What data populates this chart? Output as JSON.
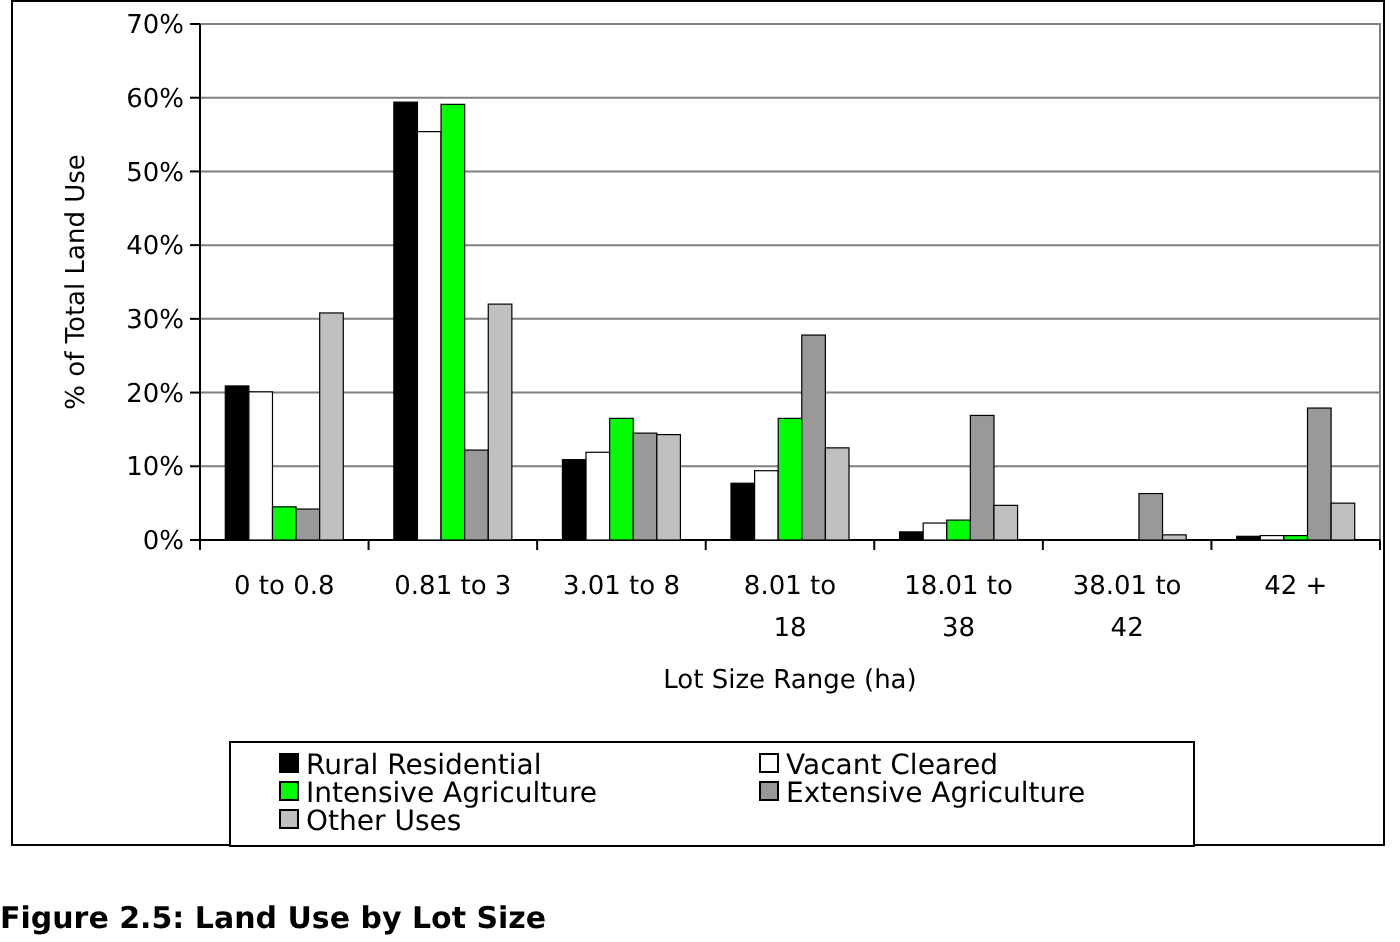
{
  "chart_data": {
    "type": "bar",
    "title": "Figure 2.5: Land Use by Lot Size",
    "xlabel": "Lot Size Range (ha)",
    "ylabel": "% of Total Land Use",
    "categories": [
      "0 to 0.8",
      "0.81 to 3",
      "3.01 to 8",
      "8.01 to 18",
      "18.01 to 38",
      "38.01 to 42",
      "42 +"
    ],
    "series": [
      {
        "name": "Rural Residential",
        "color": "#000000",
        "values": [
          20.9,
          59.4,
          10.9,
          7.7,
          1.1,
          null,
          0.5
        ]
      },
      {
        "name": "Vacant Cleared",
        "color": "#ffffff",
        "values": [
          20.1,
          55.4,
          11.9,
          9.4,
          2.3,
          null,
          0.6
        ]
      },
      {
        "name": "Intensive Agriculture",
        "color": "#00ff00",
        "values": [
          4.5,
          59.1,
          16.5,
          16.5,
          2.7,
          null,
          0.6
        ]
      },
      {
        "name": "Extensive Agriculture",
        "color": "#999999",
        "values": [
          4.2,
          12.2,
          14.5,
          27.8,
          16.9,
          6.3,
          17.9
        ]
      },
      {
        "name": "Other Uses",
        "color": "#c0c0c0",
        "values": [
          30.8,
          32.0,
          14.3,
          12.5,
          4.7,
          0.7,
          5.0
        ]
      }
    ],
    "ylim": [
      0,
      70
    ],
    "yticks": [
      {
        "value": 0,
        "label": "0%"
      },
      {
        "value": 10,
        "label": "10%"
      },
      {
        "value": 20,
        "label": "20%"
      },
      {
        "value": 30,
        "label": "30%"
      },
      {
        "value": 40,
        "label": "40%"
      },
      {
        "value": 50,
        "label": "50%"
      },
      {
        "value": 60,
        "label": "60%"
      },
      {
        "value": 70,
        "label": "70%"
      }
    ],
    "grid": "y",
    "legend": "bottom"
  }
}
